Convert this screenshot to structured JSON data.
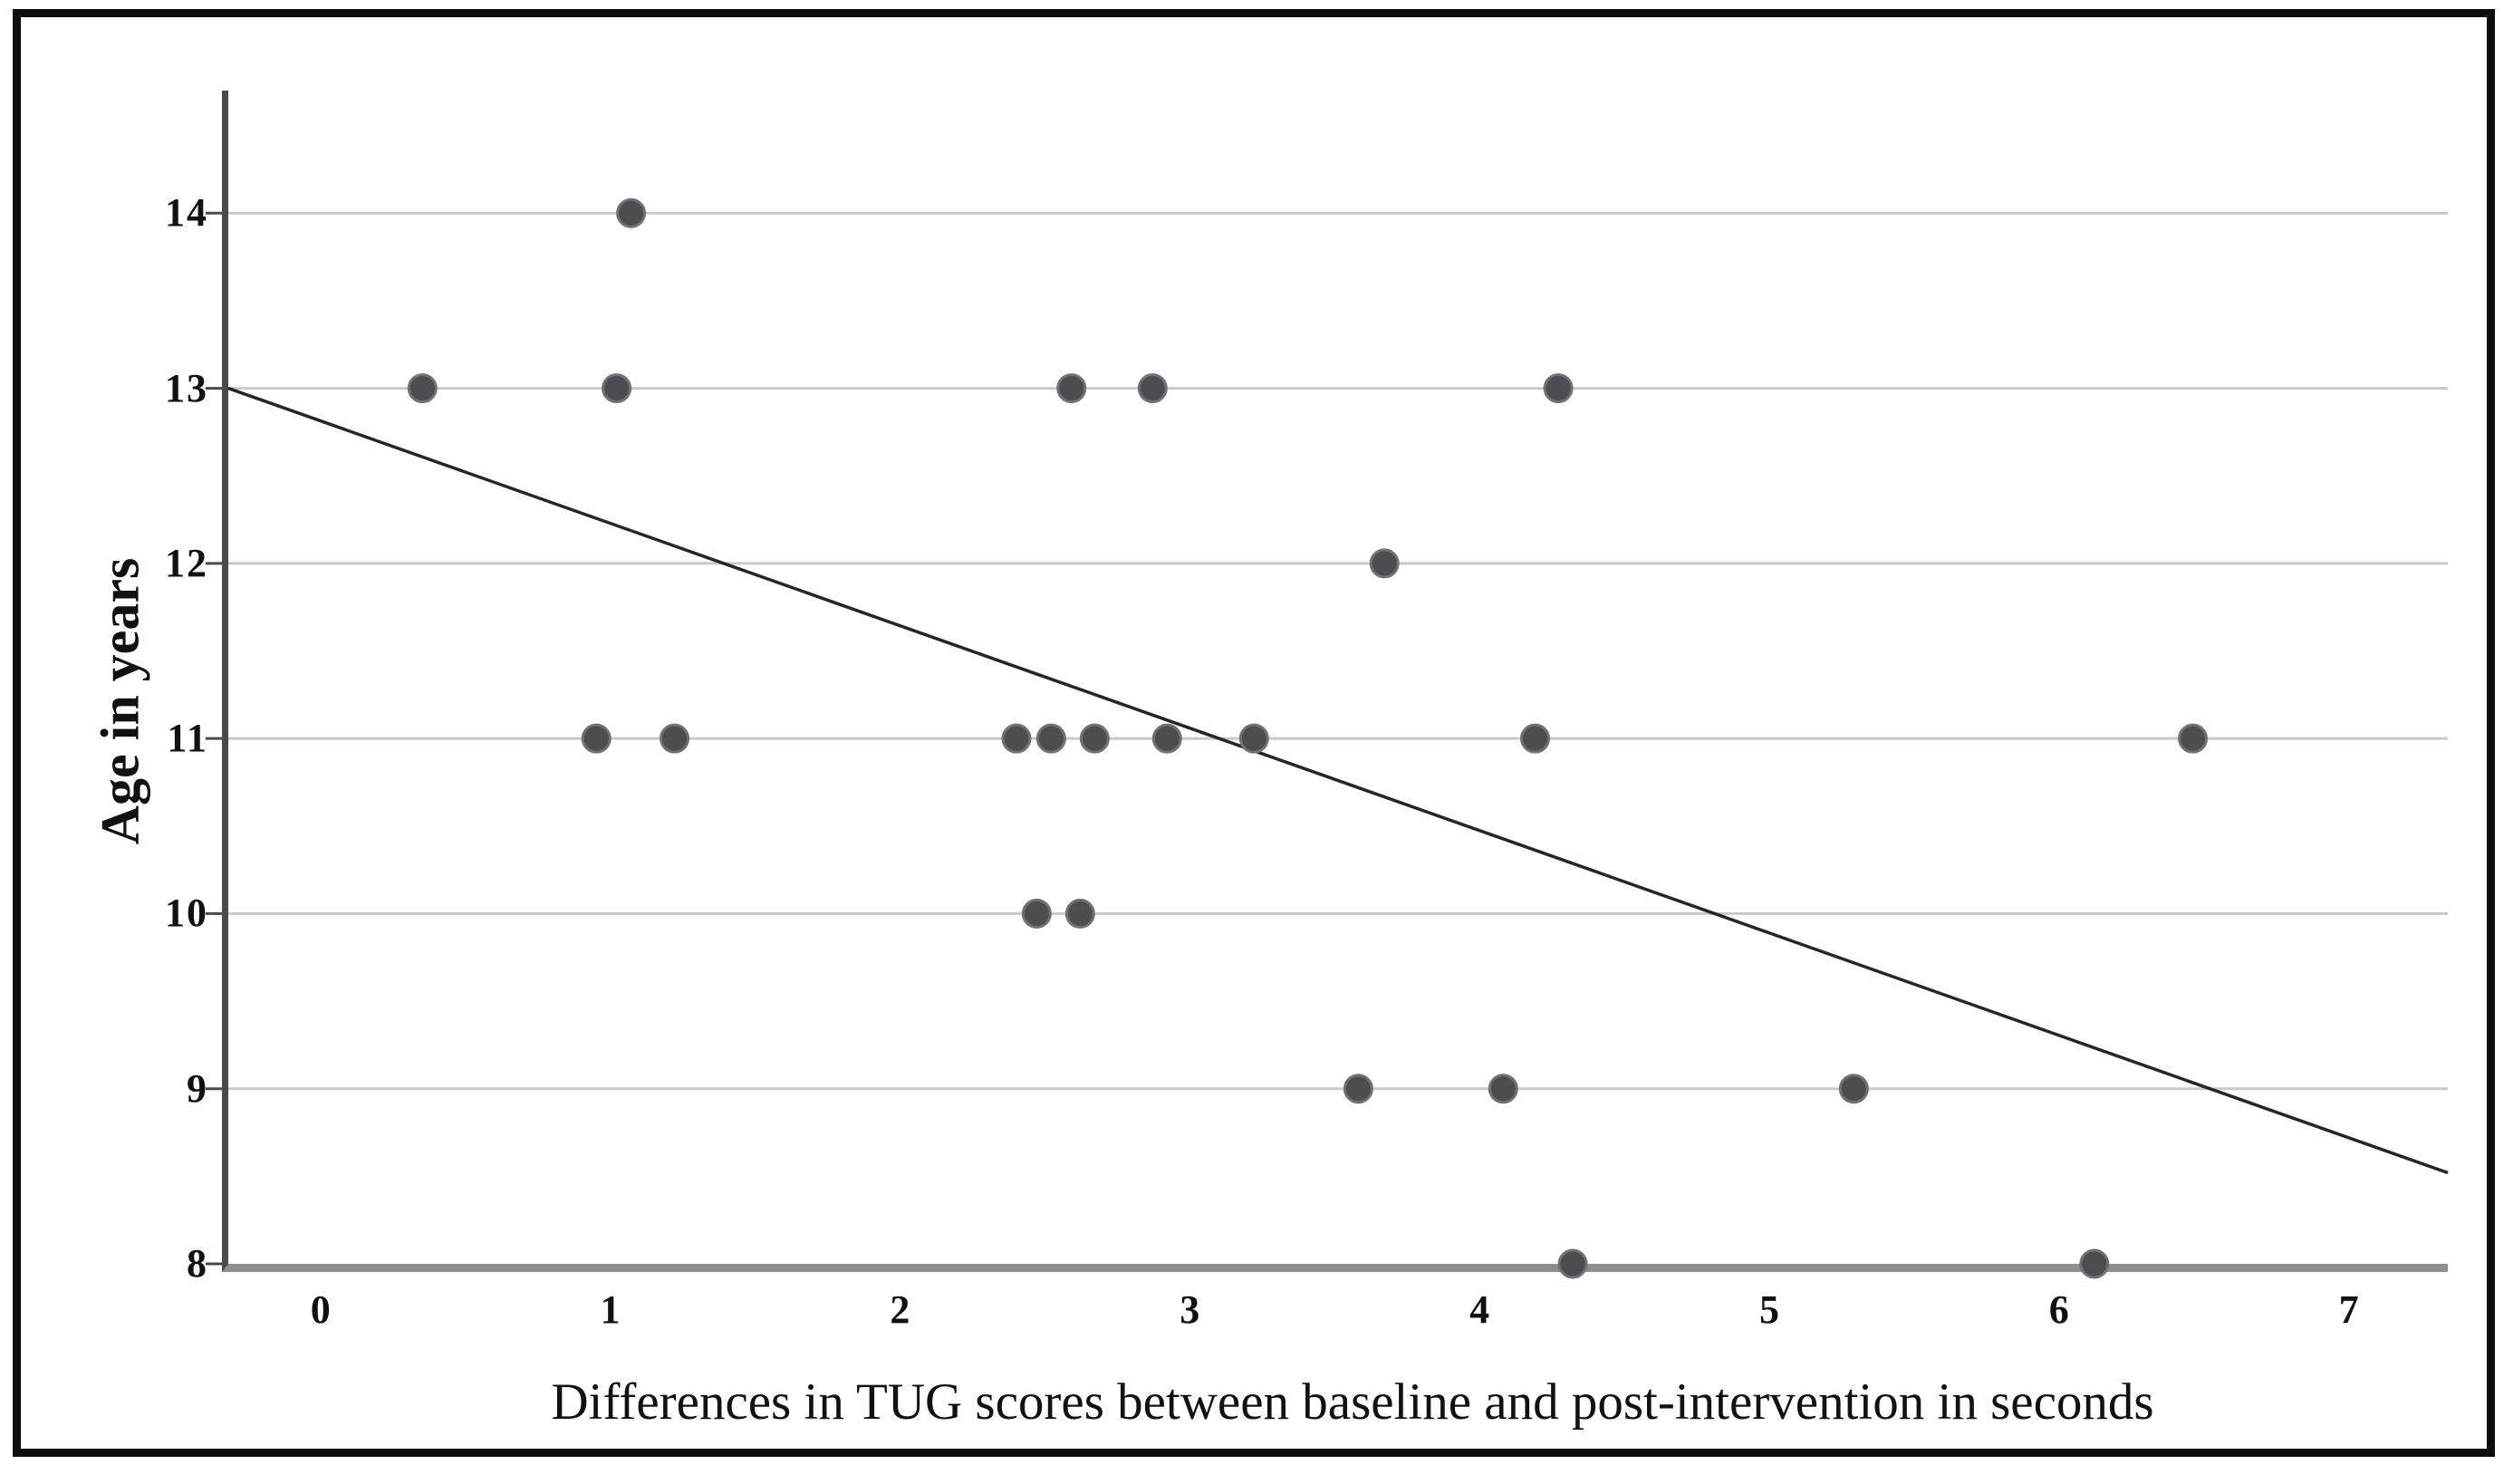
{
  "chart_data": {
    "type": "scatter",
    "title": "",
    "xlabel": "Differences in TUG scores between baseline and post-intervention in seconds",
    "ylabel": "Age in years",
    "xlim": [
      -0.34,
      7.32
    ],
    "ylim": [
      8,
      14.7
    ],
    "xticks": [
      0,
      1,
      2,
      3,
      4,
      5,
      6,
      7
    ],
    "yticks": [
      8,
      9,
      10,
      11,
      12,
      13,
      14
    ],
    "grid": "horizontal-only",
    "legend": "none",
    "points": [
      {
        "x": 1.05,
        "y": 14
      },
      {
        "x": 0.33,
        "y": 13
      },
      {
        "x": 1.0,
        "y": 13
      },
      {
        "x": 2.57,
        "y": 13
      },
      {
        "x": 2.85,
        "y": 13
      },
      {
        "x": 4.25,
        "y": 13
      },
      {
        "x": 3.65,
        "y": 12
      },
      {
        "x": 0.93,
        "y": 11
      },
      {
        "x": 1.2,
        "y": 11
      },
      {
        "x": 2.38,
        "y": 11
      },
      {
        "x": 2.5,
        "y": 11
      },
      {
        "x": 2.65,
        "y": 11
      },
      {
        "x": 2.9,
        "y": 11
      },
      {
        "x": 3.2,
        "y": 11
      },
      {
        "x": 4.17,
        "y": 11
      },
      {
        "x": 6.44,
        "y": 11
      },
      {
        "x": 2.45,
        "y": 10
      },
      {
        "x": 2.6,
        "y": 10
      },
      {
        "x": 3.56,
        "y": 9
      },
      {
        "x": 4.06,
        "y": 9
      },
      {
        "x": 5.27,
        "y": 9
      },
      {
        "x": 4.3,
        "y": 8
      },
      {
        "x": 6.1,
        "y": 8
      }
    ],
    "fit_line": {
      "x1": -0.34,
      "y1": 13.0,
      "x2": 7.32,
      "y2": 8.52
    },
    "colors": {
      "point": "#4a4e50",
      "point_edge": "#6e7274",
      "fit_line": "#262626",
      "gridline": "#c9c9c9",
      "x_axis": "#8f8f8f",
      "y_axis": "#4a4a4a",
      "text": "#111111",
      "frame": "#0d0d0d",
      "background": "#ffffff"
    }
  }
}
